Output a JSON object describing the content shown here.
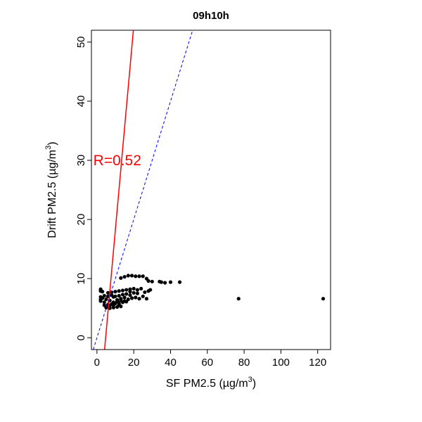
{
  "chart_data": {
    "type": "scatter",
    "title": "09h10h",
    "xlabel": "SF PM2.5 (µg/m3)",
    "xlabel_main": "SF PM2.5 ",
    "ylabel": "Drift PM2.5 (µg/m3)",
    "ylabel_main": "Drift PM2.5 ",
    "unit_open": "(",
    "unit_mu": "µ",
    "unit_g": "g/m",
    "unit_exp": "3",
    "unit_close": ")",
    "xlim": [
      -3,
      127
    ],
    "ylim": [
      -2,
      52
    ],
    "x_ticks": [
      0,
      20,
      40,
      60,
      80,
      100,
      120
    ],
    "y_ticks": [
      0,
      10,
      20,
      30,
      40,
      50
    ],
    "x_tick_labels": [
      "0",
      "20",
      "40",
      "60",
      "80",
      "100",
      "120"
    ],
    "y_tick_labels": [
      "0",
      "10",
      "20",
      "30",
      "40",
      "50"
    ],
    "grid": false,
    "annotation": {
      "text": "R=0.52",
      "x": -2,
      "y": 30,
      "color": "#ff0000"
    },
    "lines": [
      {
        "kind": "regression",
        "color": "#ff0000",
        "style": "solid",
        "intercept": -16.3,
        "slope": 3.45
      },
      {
        "kind": "identity",
        "color": "#0000ff",
        "style": "dashed",
        "intercept": 0,
        "slope": 1
      }
    ],
    "points_color": "#000000",
    "points": [
      [
        77,
        6.6
      ],
      [
        123,
        6.6
      ],
      [
        45,
        9.4
      ],
      [
        40,
        9.4
      ],
      [
        37,
        9.3
      ],
      [
        35,
        9.4
      ],
      [
        34,
        9.5
      ],
      [
        30,
        9.5
      ],
      [
        28,
        9.6
      ],
      [
        27,
        10.0
      ],
      [
        25,
        10.4
      ],
      [
        23,
        10.4
      ],
      [
        21,
        10.4
      ],
      [
        19,
        10.5
      ],
      [
        17,
        10.5
      ],
      [
        15,
        10.3
      ],
      [
        13,
        10.1
      ],
      [
        28,
        7.9
      ],
      [
        26,
        7.7
      ],
      [
        24,
        8.3
      ],
      [
        22,
        8.1
      ],
      [
        20,
        8.3
      ],
      [
        18,
        8.2
      ],
      [
        16,
        8.1
      ],
      [
        14,
        8.0
      ],
      [
        12,
        7.9
      ],
      [
        10,
        7.8
      ],
      [
        8,
        7.7
      ],
      [
        6,
        7.6
      ],
      [
        2,
        8.2
      ],
      [
        2,
        7.9
      ],
      [
        3,
        7.8
      ],
      [
        25,
        7.0
      ],
      [
        23,
        6.6
      ],
      [
        21,
        6.8
      ],
      [
        19,
        6.7
      ],
      [
        17,
        6.5
      ],
      [
        15,
        6.8
      ],
      [
        13,
        6.6
      ],
      [
        11,
        6.4
      ],
      [
        9,
        6.9
      ],
      [
        7,
        6.3
      ],
      [
        5,
        6.5
      ],
      [
        2,
        6.9
      ],
      [
        2,
        6.5
      ],
      [
        2,
        6.2
      ],
      [
        16,
        6.1
      ],
      [
        14,
        6.0
      ],
      [
        12,
        5.9
      ],
      [
        10,
        5.8
      ],
      [
        8,
        5.7
      ],
      [
        6,
        5.6
      ],
      [
        4,
        5.5
      ],
      [
        13,
        5.3
      ],
      [
        11,
        5.2
      ],
      [
        9,
        5.1
      ],
      [
        7,
        5.0
      ],
      [
        5,
        5.1
      ],
      [
        18,
        7.2
      ],
      [
        16,
        7.4
      ],
      [
        14,
        7.3
      ],
      [
        12,
        7.1
      ],
      [
        10,
        7.0
      ],
      [
        8,
        7.2
      ],
      [
        6,
        7.0
      ],
      [
        4,
        7.1
      ],
      [
        20,
        7.6
      ],
      [
        18,
        7.8
      ],
      [
        22,
        7.5
      ],
      [
        11,
        6.2
      ],
      [
        9,
        6.0
      ],
      [
        13,
        6.4
      ],
      [
        15,
        6.2
      ],
      [
        27,
        6.6
      ],
      [
        29,
        8.1
      ],
      [
        9,
        5.5
      ],
      [
        7,
        5.4
      ],
      [
        12,
        5.6
      ],
      [
        3,
        6.7
      ],
      [
        4,
        6.0
      ],
      [
        6,
        5.3
      ]
    ]
  }
}
